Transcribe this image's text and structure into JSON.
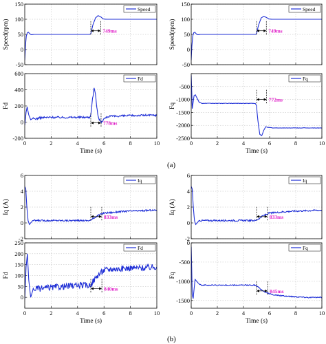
{
  "colors": {
    "series": "#1f2fd6",
    "annotation": "#e020c8",
    "axis": "#000000"
  },
  "captions": [
    "(a)",
    "(b)"
  ],
  "chart_data": [
    {
      "type": "line",
      "xlabel": "",
      "ylabel": "Speed(rpm)",
      "xlim": [
        0,
        10
      ],
      "ylim": [
        -50,
        150
      ],
      "xticks": [
        0,
        2,
        4,
        6,
        8,
        10
      ],
      "yticks": [
        -50,
        0,
        50,
        100,
        150
      ],
      "xtick_labels": [
        "",
        "",
        "",
        "",
        "",
        ""
      ],
      "ytick_labels": [
        "-50",
        "0",
        "50",
        "100",
        "150"
      ],
      "series": [
        {
          "name": "Speed",
          "x": [
            0,
            0.05,
            0.12,
            0.2,
            0.28,
            0.38,
            0.5,
            0.7,
            1,
            2,
            3,
            4,
            4.9,
            5.0,
            5.15,
            5.35,
            5.55,
            5.75,
            5.95,
            6.2,
            7,
            8,
            9,
            10
          ],
          "y": [
            -35,
            10,
            45,
            56,
            57,
            52,
            49,
            50,
            50,
            50,
            50,
            50,
            50,
            52,
            80,
            104,
            112,
            108,
            101,
            100,
            100,
            100,
            100,
            100
          ]
        }
      ],
      "annotation": {
        "text": "749ms",
        "x0": 5.0,
        "x1": 5.75,
        "y": 62
      }
    },
    {
      "type": "line",
      "xlabel": "",
      "ylabel": "Speed(rpm)",
      "xlim": [
        0,
        10
      ],
      "ylim": [
        -50,
        150
      ],
      "xticks": [
        0,
        2,
        4,
        6,
        8,
        10
      ],
      "yticks": [
        -50,
        0,
        50,
        100,
        150
      ],
      "xtick_labels": [
        "",
        "",
        "",
        "",
        "",
        ""
      ],
      "ytick_labels": [
        "-50",
        "0",
        "50",
        "100",
        "150"
      ],
      "series": [
        {
          "name": "Speed",
          "x": [
            0,
            0.05,
            0.12,
            0.2,
            0.28,
            0.38,
            0.5,
            0.7,
            1,
            2,
            3,
            4,
            4.9,
            5.0,
            5.15,
            5.35,
            5.55,
            5.75,
            5.95,
            6.2,
            7,
            8,
            9,
            10
          ],
          "y": [
            -35,
            10,
            45,
            56,
            57,
            52,
            49,
            50,
            50,
            50,
            50,
            50,
            50,
            52,
            80,
            104,
            110,
            106,
            101,
            100,
            100,
            100,
            100,
            100
          ]
        }
      ],
      "annotation": {
        "text": "749ms",
        "x0": 5.0,
        "x1": 5.75,
        "y": 62
      }
    },
    {
      "type": "line",
      "xlabel": "Time (s)",
      "ylabel": "Fd",
      "xlim": [
        0,
        10
      ],
      "ylim": [
        -200,
        600
      ],
      "xticks": [
        0,
        2,
        4,
        6,
        8,
        10
      ],
      "yticks": [
        -200,
        0,
        200,
        400,
        600
      ],
      "xtick_labels": [
        "0",
        "2",
        "4",
        "6",
        "8",
        "10"
      ],
      "ytick_labels": [
        "-200",
        "0",
        "200",
        "400",
        "600"
      ],
      "series": [
        {
          "name": "Fd",
          "x": [
            0,
            0.1,
            0.18,
            0.3,
            0.45,
            0.6,
            0.8,
            1.2,
            2,
            3,
            4,
            4.9,
            5.0,
            5.1,
            5.25,
            5.35,
            5.45,
            5.6,
            5.8,
            6.0,
            6.3,
            7,
            8,
            9,
            10
          ],
          "y": [
            -40,
            120,
            190,
            90,
            30,
            45,
            40,
            55,
            60,
            58,
            60,
            60,
            90,
            250,
            420,
            360,
            180,
            40,
            5,
            40,
            70,
            75,
            80,
            85,
            85
          ]
        }
      ],
      "noise": 12,
      "annotation": {
        "text": "778ms",
        "x0": 5.0,
        "x1": 5.78,
        "y": -10
      }
    },
    {
      "type": "line",
      "xlabel": "Time (s)",
      "ylabel": "Fq",
      "xlim": [
        0,
        10
      ],
      "ylim": [
        -2500,
        0
      ],
      "xticks": [
        0,
        2,
        4,
        6,
        8,
        10
      ],
      "yticks": [
        -2500,
        -2000,
        -1500,
        -1000,
        -500,
        0
      ],
      "xtick_labels": [
        "0",
        "2",
        "4",
        "6",
        "8",
        "10"
      ],
      "ytick_labels": [
        "-2500",
        "-2000",
        "-1500",
        "-1000",
        "-500",
        ""
      ],
      "series": [
        {
          "name": "Fq",
          "x": [
            0,
            0.08,
            0.15,
            0.22,
            0.32,
            0.45,
            0.6,
            0.8,
            1.2,
            2,
            3,
            4,
            4.9,
            5.0,
            5.1,
            5.25,
            5.4,
            5.55,
            5.7,
            5.9,
            6.2,
            7,
            8,
            9,
            10
          ],
          "y": [
            -60,
            -1350,
            -1100,
            -850,
            -820,
            -950,
            -1100,
            -1150,
            -1150,
            -1150,
            -1150,
            -1150,
            -1150,
            -1250,
            -1800,
            -2350,
            -2400,
            -2200,
            -2050,
            -2080,
            -2100,
            -2100,
            -2100,
            -2100,
            -2100
          ]
        }
      ],
      "noise": 8,
      "annotation": {
        "text": "772ms",
        "x0": 5.0,
        "x1": 5.77,
        "y": -1000
      }
    },
    {
      "type": "line",
      "xlabel": "",
      "ylabel": "Iq (A)",
      "xlim": [
        0,
        10
      ],
      "ylim": [
        -2,
        6
      ],
      "xticks": [
        0,
        2,
        4,
        6,
        8,
        10
      ],
      "yticks": [
        -2,
        0,
        2,
        4,
        6
      ],
      "xtick_labels": [
        "",
        "",
        "",
        "",
        "",
        ""
      ],
      "ytick_labels": [
        "-2",
        "0",
        "2",
        "4",
        "6"
      ],
      "series": [
        {
          "name": "Iq",
          "x": [
            0,
            0.08,
            0.15,
            0.25,
            0.35,
            0.45,
            0.6,
            0.8,
            1.2,
            2,
            3,
            4,
            4.9,
            5.0,
            5.5,
            6.0,
            6.5,
            7,
            8,
            9,
            9.5,
            10
          ],
          "y": [
            4.6,
            4.3,
            2.2,
            0.3,
            -0.2,
            0.0,
            0.3,
            0.3,
            0.3,
            0.3,
            0.3,
            0.3,
            0.3,
            0.35,
            0.9,
            1.25,
            1.3,
            1.4,
            1.5,
            1.55,
            1.6,
            1.6
          ]
        }
      ],
      "noise": 0.1,
      "annotation": {
        "text": "833ms",
        "x0": 5.0,
        "x1": 5.83,
        "y": 0.8
      }
    },
    {
      "type": "line",
      "xlabel": "",
      "ylabel": "Iq (A)",
      "xlim": [
        0,
        10
      ],
      "ylim": [
        -2,
        6
      ],
      "xticks": [
        0,
        2,
        4,
        6,
        8,
        10
      ],
      "yticks": [
        -2,
        0,
        2,
        4,
        6
      ],
      "xtick_labels": [
        "",
        "",
        "",
        "",
        "",
        ""
      ],
      "ytick_labels": [
        "-2",
        "0",
        "2",
        "4",
        "6"
      ],
      "series": [
        {
          "name": "Iq",
          "x": [
            0,
            0.08,
            0.15,
            0.25,
            0.35,
            0.45,
            0.6,
            0.8,
            1.2,
            2,
            3,
            4,
            4.9,
            5.0,
            5.5,
            6.0,
            6.5,
            7,
            8,
            9,
            9.5,
            10
          ],
          "y": [
            4.6,
            4.3,
            2.2,
            0.3,
            -0.2,
            0.0,
            0.3,
            0.3,
            0.3,
            0.3,
            0.3,
            0.3,
            0.3,
            0.35,
            0.9,
            1.25,
            1.3,
            1.4,
            1.5,
            1.55,
            1.6,
            1.6
          ]
        }
      ],
      "noise": 0.1,
      "annotation": {
        "text": "833ms",
        "x0": 5.0,
        "x1": 5.83,
        "y": 0.8
      }
    },
    {
      "type": "line",
      "xlabel": "Time (s)",
      "ylabel": "Fd",
      "xlim": [
        0,
        10
      ],
      "ylim": [
        -50,
        250
      ],
      "xticks": [
        0,
        2,
        4,
        6,
        8,
        10
      ],
      "yticks": [
        0,
        50,
        100,
        150,
        200,
        250
      ],
      "xtick_labels": [
        "0",
        "2",
        "4",
        "6",
        "8",
        "10"
      ],
      "ytick_labels": [
        "0",
        "50",
        "100",
        "150",
        "200",
        "250"
      ],
      "series": [
        {
          "name": "Fd",
          "x": [
            0,
            0.1,
            0.2,
            0.3,
            0.45,
            0.6,
            0.8,
            1.2,
            2,
            3,
            4,
            4.9,
            5.0,
            5.5,
            6.0,
            6.5,
            7,
            8,
            9,
            10
          ],
          "y": [
            -10,
            140,
            200,
            80,
            0,
            30,
            40,
            40,
            45,
            50,
            55,
            55,
            60,
            100,
            125,
            130,
            130,
            135,
            135,
            140
          ]
        }
      ],
      "noise": 14,
      "annotation": {
        "text": "840ms",
        "x0": 5.0,
        "x1": 5.84,
        "y": 40
      }
    },
    {
      "type": "line",
      "xlabel": "Time (s)",
      "ylabel": "Fq",
      "xlim": [
        0,
        10
      ],
      "ylim": [
        -1700,
        0
      ],
      "xticks": [
        0,
        2,
        4,
        6,
        8,
        10
      ],
      "yticks": [
        -1500,
        -1000,
        -500,
        0
      ],
      "xtick_labels": [
        "0",
        "2",
        "4",
        "6",
        "8",
        "10"
      ],
      "ytick_labels": [
        "-1500",
        "-1000",
        "-500",
        "0"
      ],
      "series": [
        {
          "name": "Fq",
          "x": [
            0,
            0.08,
            0.15,
            0.22,
            0.3,
            0.42,
            0.55,
            0.8,
            1.2,
            2,
            3,
            4,
            4.9,
            5.0,
            5.5,
            6.0,
            6.5,
            7,
            8,
            9,
            10
          ],
          "y": [
            -100,
            -1350,
            -1450,
            -1200,
            -950,
            -1000,
            -1050,
            -1100,
            -1100,
            -1100,
            -1100,
            -1100,
            -1100,
            -1120,
            -1250,
            -1330,
            -1360,
            -1380,
            -1400,
            -1420,
            -1420
          ]
        }
      ],
      "noise": 14,
      "annotation": {
        "text": "845ms",
        "x0": 5.0,
        "x1": 5.85,
        "y": -1250
      }
    }
  ]
}
